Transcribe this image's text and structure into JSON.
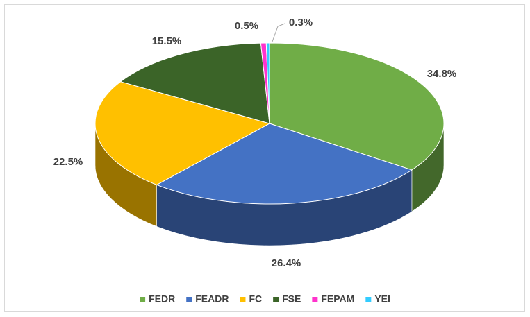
{
  "chart_data": {
    "type": "pie",
    "categories": [
      "FEDR",
      "FEADR",
      "FC",
      "FSE",
      "FEPAM",
      "YEI"
    ],
    "values": [
      34.8,
      26.4,
      22.5,
      15.5,
      0.5,
      0.3
    ],
    "value_labels": [
      "34.8%",
      "26.4%",
      "22.5%",
      "15.5%",
      "0.5%",
      "0.3%"
    ],
    "colors": [
      "#70ad47",
      "#4472c4",
      "#ffc000",
      "#3b6428",
      "#ff33cc",
      "#33ccff"
    ],
    "legend": "bottom"
  }
}
